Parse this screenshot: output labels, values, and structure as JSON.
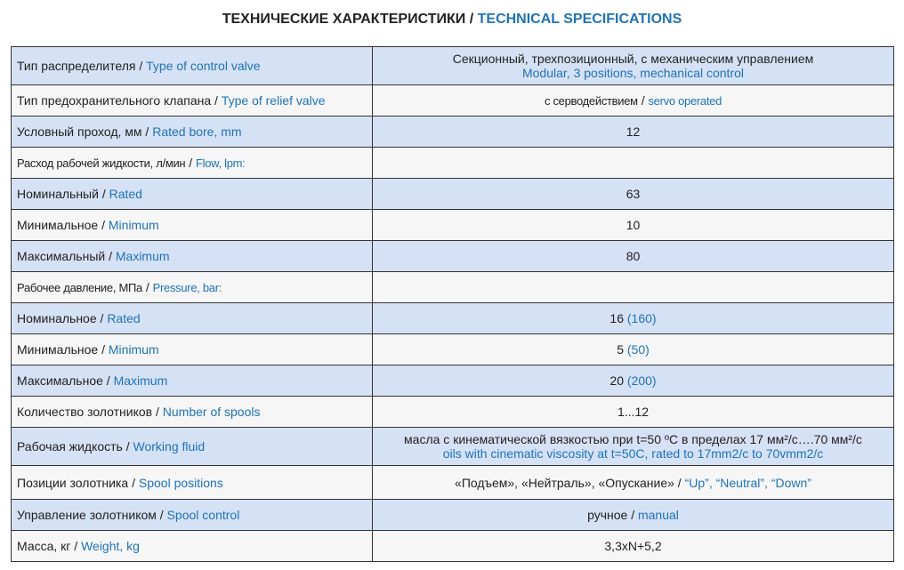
{
  "title": {
    "ru": "ТЕХНИЧЕСКИЕ ХАРАКТЕРИСТИКИ",
    "sep": " / ",
    "en": "TECHNICAL SPECIFICATIONS"
  },
  "rows": [
    {
      "ru": "Тип распределителя",
      "en": "Type of control valve",
      "v_ru": "Секционный, трехпозиционный, с механическим управлением",
      "v_en": "Modular, 3 positions, mechanical control"
    },
    {
      "ru": "Тип предохранительного клапана",
      "en": "Type of relief valve",
      "v_ru": "с серводействием",
      "v_en": "servo operated"
    },
    {
      "ru": "Условный проход, мм",
      "en": "Rated bore, mm",
      "v_ru": "12",
      "v_en": ""
    },
    {
      "ru": "Расход рабочей жидкости, л/мин",
      "en": "Flow, lpm:",
      "v_ru": "",
      "v_en": ""
    },
    {
      "ru": "Номинальный",
      "en": "Rated",
      "v_ru": "63",
      "v_en": ""
    },
    {
      "ru": "Минимальное",
      "en": "Minimum",
      "v_ru": "10",
      "v_en": ""
    },
    {
      "ru": "Максимальный",
      "en": "Maximum",
      "v_ru": "80",
      "v_en": ""
    },
    {
      "ru": "Рабочее давление, МПа",
      "en": "Pressure, bar:",
      "v_ru": "",
      "v_en": ""
    },
    {
      "ru": "Номинальное",
      "en": "Rated",
      "v_ru": "16",
      "v_en": "(160)"
    },
    {
      "ru": "Минимальное",
      "en": "Minimum",
      "v_ru": "5",
      "v_en": "(50)"
    },
    {
      "ru": "Максимальное",
      "en": "Maximum",
      "v_ru": "20",
      "v_en": "(200)"
    },
    {
      "ru": "Количество золотников",
      "en": "Number of spools",
      "v_ru": "1...12",
      "v_en": ""
    },
    {
      "ru": "Рабочая жидкость",
      "en": "Working fluid",
      "v_ru": "масла с кинематической вязкостью при t=50 ºC в пределах 17 мм²/с….70 мм²/с",
      "v_en": "oils with cinematic viscosity at t=50C, rated to 17mm2/c to 70vmm2/c"
    },
    {
      "ru": "Позиции золотника",
      "en": "Spool positions",
      "v_ru": "«Подъем», «Нейтраль», «Опускание»",
      "v_en": "“Up”, “Neutral”, “Down”"
    },
    {
      "ru": "Управление золотником",
      "en": "Spool control",
      "v_ru": "ручное",
      "v_en": "manual"
    },
    {
      "ru": "Масса, кг",
      "en": "Weight, kg",
      "v_ru": "3,3xN+5,2",
      "v_en": ""
    }
  ]
}
